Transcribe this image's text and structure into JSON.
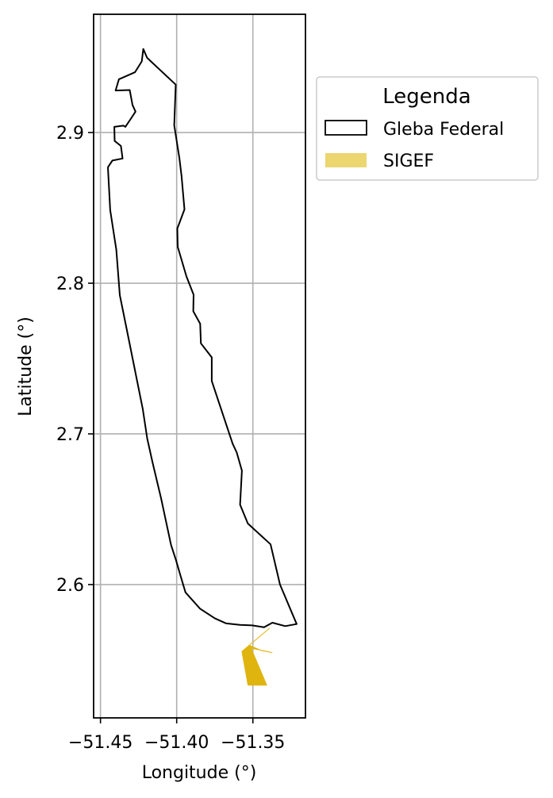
{
  "chart_data": {
    "type": "map",
    "xlabel": "Longitude (°)",
    "ylabel": "Latitude (°)",
    "xlim": [
      -51.4545,
      -51.3155
    ],
    "ylim": [
      2.5115,
      2.9785
    ],
    "grid": true,
    "xticks": [
      -51.45,
      -51.4,
      -51.35
    ],
    "xtick_labels": [
      "−51.45",
      "−51.40",
      "−51.35"
    ],
    "yticks": [
      2.6,
      2.7,
      2.8,
      2.9
    ],
    "ytick_labels": [
      "2.6",
      "2.7",
      "2.8",
      "2.9"
    ],
    "legend": {
      "title": "Legenda",
      "placement": "outside-upper-right",
      "entries": [
        "Gleba Federal",
        "SIGEF"
      ]
    },
    "series": [
      {
        "name": "Gleba Federal",
        "style": "outline",
        "color": "#000000",
        "polygon": [
          [
            -51.4219,
            2.9555
          ],
          [
            -51.4194,
            2.9496
          ],
          [
            -51.4006,
            2.9318
          ],
          [
            -51.4016,
            2.9048
          ],
          [
            -51.3983,
            2.8834
          ],
          [
            -51.3968,
            2.8713
          ],
          [
            -51.3949,
            2.849
          ],
          [
            -51.3996,
            2.8363
          ],
          [
            -51.3993,
            2.8242
          ],
          [
            -51.3936,
            2.8045
          ],
          [
            -51.3889,
            2.7924
          ],
          [
            -51.3891,
            2.7814
          ],
          [
            -51.3846,
            2.7731
          ],
          [
            -51.3841,
            2.7601
          ],
          [
            -51.377,
            2.7508
          ],
          [
            -51.377,
            2.7351
          ],
          [
            -51.3633,
            2.6935
          ],
          [
            -51.3606,
            2.6876
          ],
          [
            -51.3572,
            2.6756
          ],
          [
            -51.3584,
            2.653
          ],
          [
            -51.3533,
            2.6405
          ],
          [
            -51.3384,
            2.6267
          ],
          [
            -51.3322,
            2.6
          ],
          [
            -51.3213,
            2.5738
          ],
          [
            -51.3288,
            2.5724
          ],
          [
            -51.3372,
            2.5747
          ],
          [
            -51.3427,
            2.5717
          ],
          [
            -51.3505,
            2.5729
          ],
          [
            -51.3585,
            2.5732
          ],
          [
            -51.3675,
            2.5742
          ],
          [
            -51.3749,
            2.5775
          ],
          [
            -51.3847,
            2.584
          ],
          [
            -51.3942,
            2.5948
          ],
          [
            -51.3977,
            2.6066
          ],
          [
            -51.4004,
            2.6161
          ],
          [
            -51.4037,
            2.6262
          ],
          [
            -51.4102,
            2.6571
          ],
          [
            -51.4158,
            2.681
          ],
          [
            -51.4193,
            2.6968
          ],
          [
            -51.4223,
            2.7166
          ],
          [
            -51.4328,
            2.7695
          ],
          [
            -51.4373,
            2.7921
          ],
          [
            -51.4396,
            2.8222
          ],
          [
            -51.4436,
            2.8485
          ],
          [
            -51.4451,
            2.8761
          ],
          [
            -51.445,
            2.8771
          ],
          [
            -51.4422,
            2.8814
          ],
          [
            -51.4355,
            2.8828
          ],
          [
            -51.4366,
            2.8911
          ],
          [
            -51.4407,
            2.8944
          ],
          [
            -51.4409,
            2.9038
          ],
          [
            -51.435,
            2.9046
          ],
          [
            -51.4337,
            2.9038
          ],
          [
            -51.4302,
            2.909
          ],
          [
            -51.427,
            2.9139
          ],
          [
            -51.429,
            2.9183
          ],
          [
            -51.4308,
            2.9282
          ],
          [
            -51.4401,
            2.9279
          ],
          [
            -51.4379,
            2.9354
          ],
          [
            -51.4274,
            2.94
          ],
          [
            -51.4229,
            2.9472
          ],
          [
            -51.4219,
            2.9555
          ]
        ]
      },
      {
        "name": "SIGEF",
        "style": "filled",
        "color": "#dfb40f",
        "polygon": [
          [
            -51.3391,
            2.571
          ],
          [
            -51.3524,
            2.5597
          ],
          [
            -51.3442,
            2.5561
          ],
          [
            -51.3374,
            2.5549
          ],
          [
            -51.3512,
            2.5578
          ],
          [
            -51.3409,
            2.5332
          ],
          [
            -51.3532,
            2.5332
          ],
          [
            -51.3572,
            2.5556
          ],
          [
            -51.3391,
            2.571
          ]
        ]
      }
    ]
  },
  "legend_colors": {
    "outline_fill": "#ffffff",
    "outline_stroke": "#000000",
    "sigef_fill": "#ecd670"
  }
}
